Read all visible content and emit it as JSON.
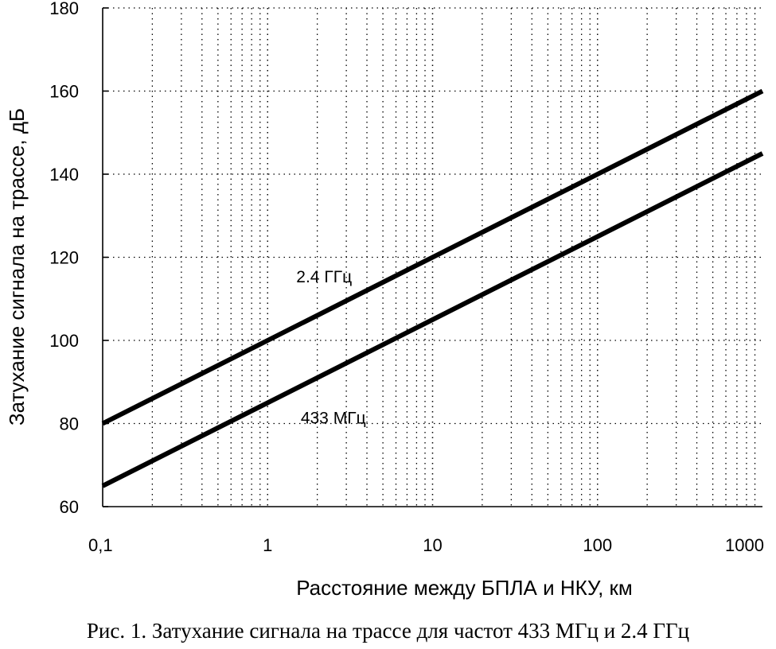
{
  "caption": "Рис. 1. Затухание сигнала на трассе для частот 433 МГц и 2.4 ГГц",
  "chart_data": {
    "type": "line",
    "xscale": "log",
    "xlim": [
      0.1,
      1000
    ],
    "ylim": [
      60,
      180
    ],
    "xlabel": "Расстояние между БПЛА и НКУ, км",
    "ylabel": "Затухание сигнала на трассе, дБ",
    "grid": true,
    "x_ticks": [
      {
        "value": 0.1,
        "label": "0,1"
      },
      {
        "value": 1,
        "label": "1"
      },
      {
        "value": 10,
        "label": "10"
      },
      {
        "value": 100,
        "label": "100"
      },
      {
        "value": 1000,
        "label": "1000"
      }
    ],
    "y_ticks": [
      {
        "value": 60,
        "label": "60"
      },
      {
        "value": 80,
        "label": "80"
      },
      {
        "value": 100,
        "label": "100"
      },
      {
        "value": 120,
        "label": "120"
      },
      {
        "value": 140,
        "label": "140"
      },
      {
        "value": 160,
        "label": "160"
      },
      {
        "value": 180,
        "label": "180"
      }
    ],
    "series": [
      {
        "name": "2.4 ГГц",
        "color": "#000000",
        "x": [
          0.1,
          1,
          10,
          100,
          1000
        ],
        "y": [
          80,
          100,
          120,
          140,
          160
        ],
        "label_at": {
          "x": 2.2,
          "y": 114
        }
      },
      {
        "name": "433 МГц",
        "color": "#000000",
        "x": [
          0.1,
          1,
          10,
          100,
          1000
        ],
        "y": [
          65,
          85,
          105,
          125,
          145
        ],
        "label_at": {
          "x": 2.5,
          "y": 80
        }
      }
    ]
  }
}
